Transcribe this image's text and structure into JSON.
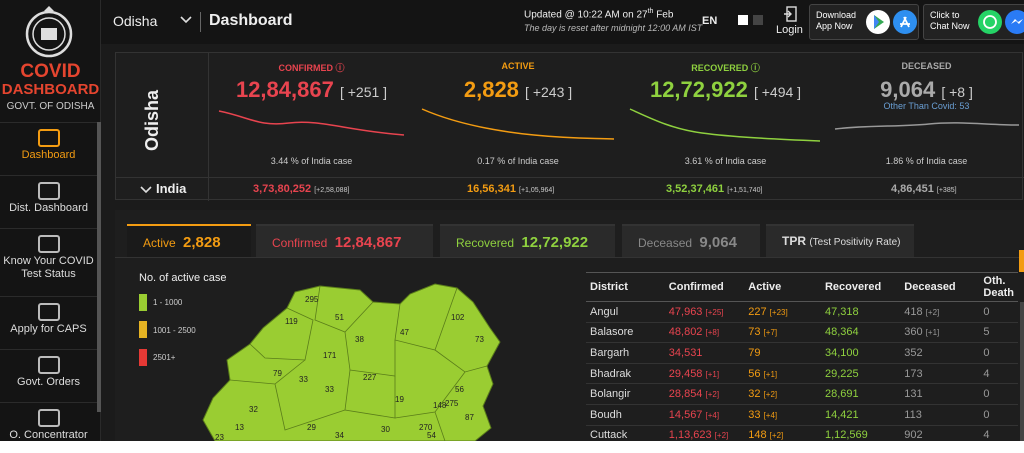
{
  "sidebar": {
    "brand_title": "COVID",
    "brand_sub": "DASHBOARD",
    "brand_gov": "GOVT. OF ODISHA",
    "items": [
      {
        "label": "Dashboard",
        "icon": "dashboard-icon",
        "active": true
      },
      {
        "label": "Dist. Dashboard",
        "icon": "district-dashboard-icon"
      },
      {
        "label": "Know Your COVID Test Status",
        "icon": "test-status-icon"
      },
      {
        "label": "Apply for CAPS",
        "icon": "caps-icon"
      },
      {
        "label": "Govt. Orders",
        "icon": "orders-icon"
      },
      {
        "label": "O. Concentrator",
        "icon": "concentrator-icon"
      }
    ]
  },
  "topbar": {
    "state": "Odisha",
    "title": "Dashboard",
    "updated_pre": "Updated @ 10:22 AM on 27",
    "updated_sup": "th",
    "updated_post": " Feb",
    "reset_note": "The day is reset after midnight 12:00 AM IST",
    "lang": "EN",
    "login": "Login",
    "download_l1": "Download",
    "download_l2": "App Now",
    "chat_l1": "Click to",
    "chat_l2": "Chat Now"
  },
  "region_label": "Odisha",
  "cards": {
    "confirmed": {
      "label": "CONFIRMED",
      "value": "12,84,867",
      "delta": "[ +251 ]",
      "pct": "3.44 % of India case",
      "color": "#e8444f"
    },
    "active": {
      "label": "ACTIVE",
      "value": "2,828",
      "delta": "[ +243 ]",
      "pct": "0.17 % of India case",
      "color": "#f39c12"
    },
    "recovered": {
      "label": "RECOVERED",
      "value": "12,72,922",
      "delta": "[ +494 ]",
      "pct": "3.61 % of India case",
      "color": "#8fd13f"
    },
    "deceased": {
      "label": "DECEASED",
      "value": "9,064",
      "delta": "[ +8 ]",
      "sub": "Other Than Covid: 53",
      "pct": "1.86 % of India case",
      "color": "#aaaaaa"
    }
  },
  "india": {
    "label": "India",
    "confirmed": "3,73,80,252",
    "confirmed_d": "[+2,58,088]",
    "active": "16,56,341",
    "active_d": "[+1,05,964]",
    "recovered": "3,52,37,461",
    "recovered_d": "[+1,51,740]",
    "deceased": "4,86,451",
    "deceased_d": "[+385]"
  },
  "tabs": [
    {
      "label": "Active",
      "value": "2,828",
      "color": "#f39c12",
      "active": true
    },
    {
      "label": "Confirmed",
      "value": "12,84,867",
      "color": "#e8444f"
    },
    {
      "label": "Recovered",
      "value": "12,72,922",
      "color": "#8fd13f"
    },
    {
      "label": "Deceased",
      "value": "9,064",
      "color": "#888888"
    },
    {
      "label": "TPR",
      "value": "(Test Positivity Rate)",
      "color": "#dddddd"
    }
  ],
  "legend": {
    "title": "No. of active case",
    "items": [
      {
        "label": "1 - 1000",
        "color": "#9acd32"
      },
      {
        "label": "1001 - 2500",
        "color": "#e5b323"
      },
      {
        "label": "2501+",
        "color": "#e53935"
      }
    ]
  },
  "map_labels": [
    "295",
    "119",
    "51",
    "38",
    "47",
    "102",
    "171",
    "73",
    "79",
    "227",
    "33",
    "33",
    "56",
    "32",
    "19",
    "275",
    "87",
    "23",
    "29",
    "30",
    "270",
    "148",
    "54",
    "13",
    "34"
  ],
  "table": {
    "headers": [
      "District",
      "Confirmed",
      "Active",
      "Recovered",
      "Deceased",
      "Oth. Death"
    ],
    "rows": [
      {
        "district": "Angul",
        "confirmed": "47,963",
        "confirmed_d": "[+25]",
        "active": "227",
        "active_d": "[+23]",
        "recovered": "47,318",
        "deceased": "418",
        "deceased_d": "[+2]",
        "oth": "0"
      },
      {
        "district": "Balasore",
        "confirmed": "48,802",
        "confirmed_d": "[+8]",
        "active": "73",
        "active_d": "[+7]",
        "recovered": "48,364",
        "deceased": "360",
        "deceased_d": "[+1]",
        "oth": "5"
      },
      {
        "district": "Bargarh",
        "confirmed": "34,531",
        "confirmed_d": "",
        "active": "79",
        "active_d": "",
        "recovered": "34,100",
        "deceased": "352",
        "deceased_d": "",
        "oth": "0"
      },
      {
        "district": "Bhadrak",
        "confirmed": "29,458",
        "confirmed_d": "[+1]",
        "active": "56",
        "active_d": "[+1]",
        "recovered": "29,225",
        "deceased": "173",
        "deceased_d": "",
        "oth": "4"
      },
      {
        "district": "Bolangir",
        "confirmed": "28,854",
        "confirmed_d": "[+2]",
        "active": "32",
        "active_d": "[+2]",
        "recovered": "28,691",
        "deceased": "131",
        "deceased_d": "",
        "oth": "0"
      },
      {
        "district": "Boudh",
        "confirmed": "14,567",
        "confirmed_d": "[+4]",
        "active": "33",
        "active_d": "[+4]",
        "recovered": "14,421",
        "deceased": "113",
        "deceased_d": "",
        "oth": "0"
      },
      {
        "district": "Cuttack",
        "confirmed": "1,13,623",
        "confirmed_d": "[+2]",
        "active": "148",
        "active_d": "[+2]",
        "recovered": "1,12,569",
        "deceased": "902",
        "deceased_d": "",
        "oth": "4"
      }
    ]
  }
}
